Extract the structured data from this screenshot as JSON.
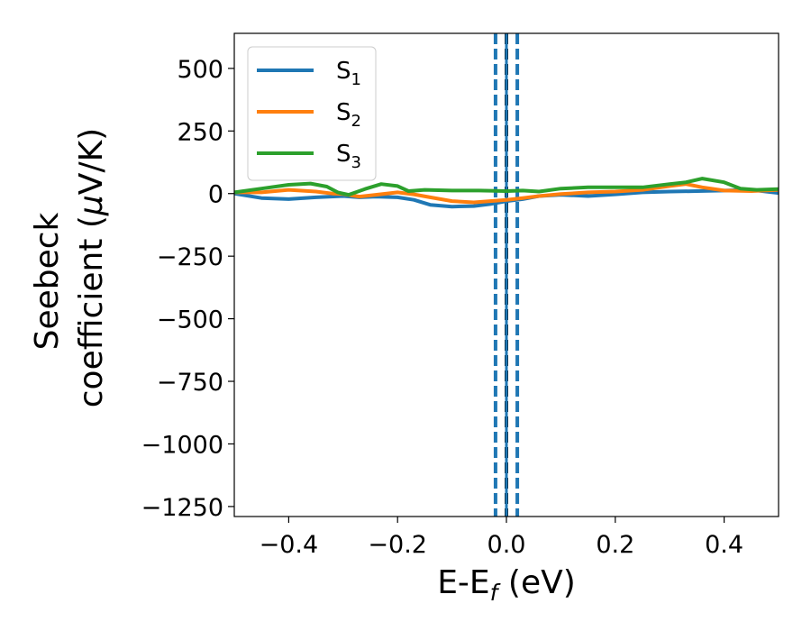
{
  "chart_data": {
    "type": "line",
    "title": "",
    "xlabel": {
      "main": "E-E",
      "sub": "f",
      "suffix": " (eV)"
    },
    "ylabel": {
      "line1": "Seebeck",
      "line2_text": "coefficient  (",
      "line2_mu": "μ",
      "line2_end": "V/K)"
    },
    "xlim": [
      -0.5,
      0.5
    ],
    "ylim": [
      -1290,
      640
    ],
    "xticks": [
      -0.4,
      -0.2,
      0.0,
      0.2,
      0.4
    ],
    "xtick_labels": [
      "−0.4",
      "−0.2",
      "0.0",
      "0.2",
      "0.4"
    ],
    "yticks": [
      500,
      250,
      0,
      -250,
      -500,
      -750,
      -1000,
      -1250
    ],
    "ytick_labels": [
      "500",
      "250",
      "0",
      "−250",
      "−500",
      "−750",
      "−1000",
      "−1250"
    ],
    "grid": false,
    "legend_position": "top-left",
    "vertical_lines": [
      {
        "x": 0.0,
        "color": "#000000",
        "style": "dashed"
      },
      {
        "x": -0.02,
        "color": "#1f77b4",
        "style": "dashed"
      },
      {
        "x": 0.02,
        "color": "#1f77b4",
        "style": "dashed"
      },
      {
        "x": 0.0,
        "color": "#1f77b4",
        "style": "solid"
      }
    ],
    "series": [
      {
        "name": "S",
        "sub": "1",
        "color": "#1f77b4",
        "points": [
          [
            -0.5,
            0
          ],
          [
            -0.45,
            -18
          ],
          [
            -0.4,
            -22
          ],
          [
            -0.35,
            -15
          ],
          [
            -0.3,
            -10
          ],
          [
            -0.27,
            -15
          ],
          [
            -0.24,
            -12
          ],
          [
            -0.2,
            -15
          ],
          [
            -0.17,
            -25
          ],
          [
            -0.14,
            -45
          ],
          [
            -0.1,
            -52
          ],
          [
            -0.06,
            -50
          ],
          [
            -0.03,
            -42
          ],
          [
            0.0,
            -30
          ],
          [
            0.03,
            -22
          ],
          [
            0.06,
            -10
          ],
          [
            0.1,
            -5
          ],
          [
            0.15,
            -10
          ],
          [
            0.2,
            -3
          ],
          [
            0.25,
            5
          ],
          [
            0.3,
            8
          ],
          [
            0.35,
            10
          ],
          [
            0.4,
            12
          ],
          [
            0.45,
            15
          ],
          [
            0.5,
            2
          ]
        ]
      },
      {
        "name": "S",
        "sub": "2",
        "color": "#ff7f0e",
        "points": [
          [
            -0.5,
            5
          ],
          [
            -0.45,
            5
          ],
          [
            -0.4,
            15
          ],
          [
            -0.35,
            8
          ],
          [
            -0.32,
            0
          ],
          [
            -0.3,
            -2
          ],
          [
            -0.27,
            -12
          ],
          [
            -0.24,
            -5
          ],
          [
            -0.2,
            5
          ],
          [
            -0.17,
            -3
          ],
          [
            -0.14,
            -15
          ],
          [
            -0.1,
            -30
          ],
          [
            -0.06,
            -35
          ],
          [
            -0.03,
            -30
          ],
          [
            0.0,
            -25
          ],
          [
            0.03,
            -18
          ],
          [
            0.06,
            -10
          ],
          [
            0.1,
            -2
          ],
          [
            0.15,
            5
          ],
          [
            0.2,
            8
          ],
          [
            0.25,
            15
          ],
          [
            0.3,
            30
          ],
          [
            0.33,
            38
          ],
          [
            0.36,
            25
          ],
          [
            0.4,
            12
          ],
          [
            0.45,
            10
          ],
          [
            0.5,
            15
          ]
        ]
      },
      {
        "name": "S",
        "sub": "3",
        "color": "#2ca02c",
        "points": [
          [
            -0.5,
            5
          ],
          [
            -0.45,
            20
          ],
          [
            -0.4,
            35
          ],
          [
            -0.36,
            40
          ],
          [
            -0.33,
            28
          ],
          [
            -0.31,
            5
          ],
          [
            -0.29,
            -5
          ],
          [
            -0.26,
            18
          ],
          [
            -0.23,
            38
          ],
          [
            -0.2,
            30
          ],
          [
            -0.18,
            10
          ],
          [
            -0.15,
            15
          ],
          [
            -0.1,
            12
          ],
          [
            -0.05,
            12
          ],
          [
            0.0,
            10
          ],
          [
            0.03,
            12
          ],
          [
            0.06,
            8
          ],
          [
            0.1,
            20
          ],
          [
            0.15,
            25
          ],
          [
            0.2,
            25
          ],
          [
            0.25,
            25
          ],
          [
            0.3,
            38
          ],
          [
            0.33,
            45
          ],
          [
            0.36,
            60
          ],
          [
            0.4,
            45
          ],
          [
            0.43,
            20
          ],
          [
            0.46,
            15
          ],
          [
            0.5,
            18
          ]
        ]
      }
    ]
  }
}
